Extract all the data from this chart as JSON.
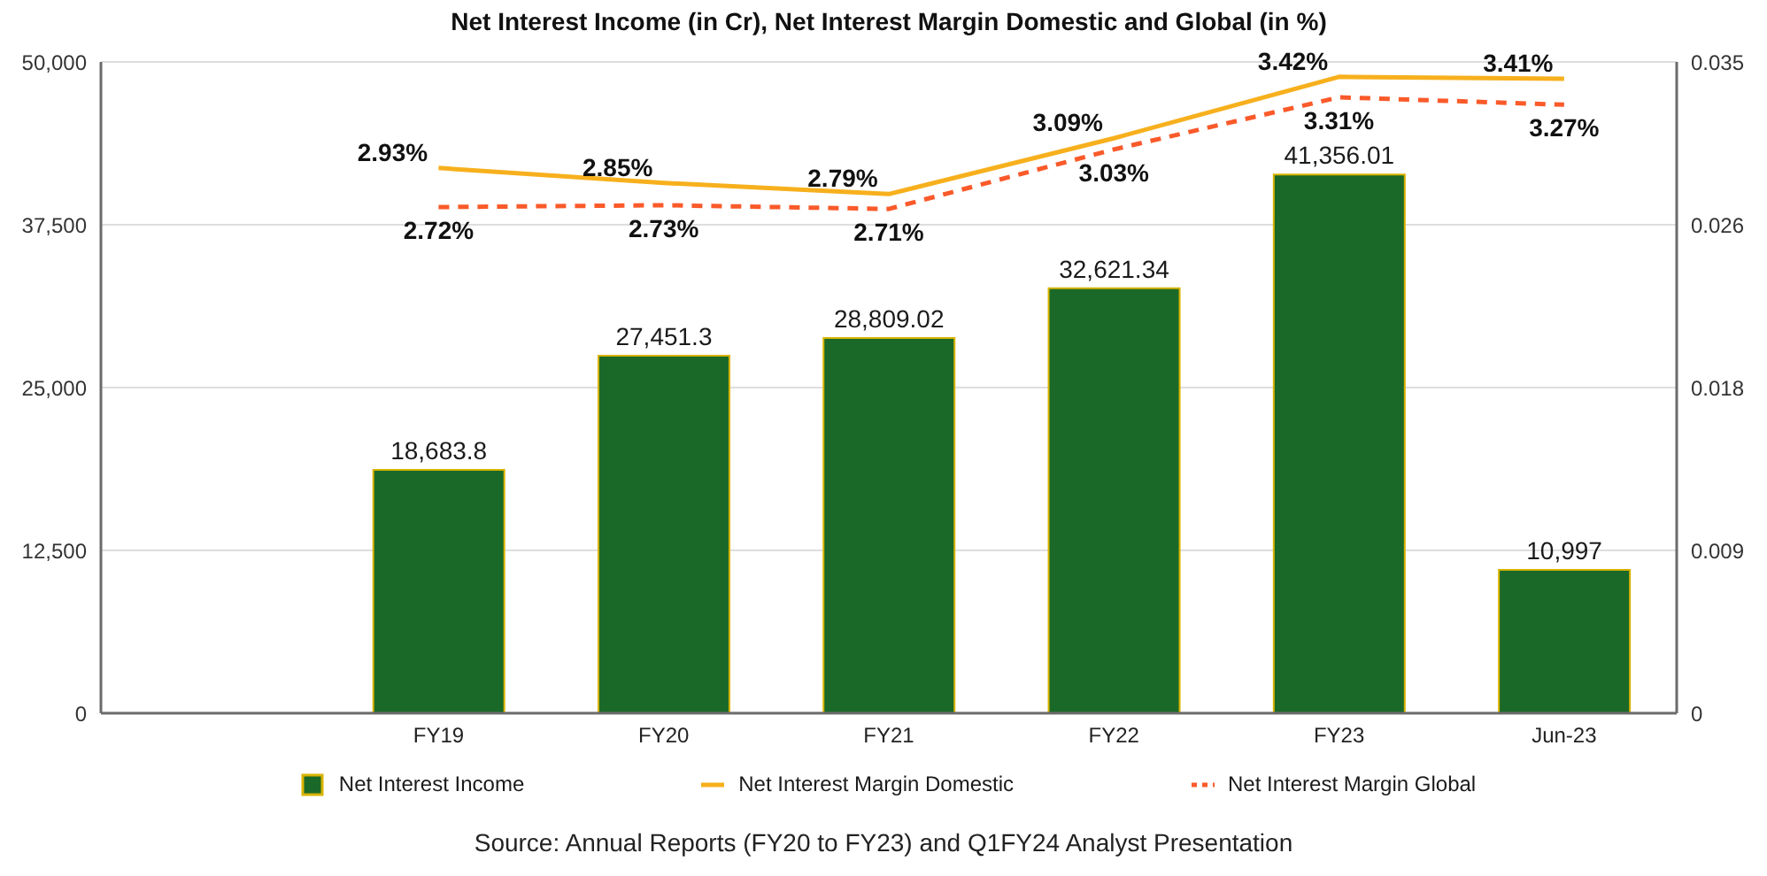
{
  "chart_data": {
    "type": "bar",
    "title": "Net Interest Income (in Cr), Net Interest Margin Domestic and Global (in %)",
    "categories": [
      null,
      "FY19",
      "FY20",
      "FY21",
      "FY22",
      "FY23",
      "Jun-23"
    ],
    "series": [
      {
        "name": "Net Interest Income",
        "color": "#1b6928",
        "values": [
          null,
          18683.8,
          27451.3,
          28809.02,
          32621.34,
          41356.01,
          10997
        ],
        "value_labels": [
          null,
          "18,683.8",
          "27,451.3",
          "28,809.02",
          "32,621.34",
          "41,356.01",
          "10,997"
        ]
      },
      {
        "name": "Net Interest Margin Domestic",
        "type": "line",
        "axis": "y2",
        "color": "#f7b01d",
        "line_style": "solid",
        "values": [
          null,
          0.0293,
          0.0285,
          0.0279,
          0.0309,
          0.0342,
          0.0341
        ],
        "value_labels": [
          null,
          "2.93%",
          "2.85%",
          "2.79%",
          "3.09%",
          "3.42%",
          "3.41%"
        ]
      },
      {
        "name": "Net Interest Margin Global",
        "type": "line",
        "axis": "y2",
        "color": "#fa5a2a",
        "line_style": "dashed",
        "values": [
          null,
          0.0272,
          0.0273,
          0.0271,
          0.0303,
          0.0331,
          0.0327
        ],
        "value_labels": [
          null,
          "2.72%",
          "2.73%",
          "2.71%",
          "3.03%",
          "3.31%",
          "3.27%"
        ]
      }
    ],
    "ylim": [
      0,
      50000
    ],
    "yticks": [
      0,
      {
        "value": 12500,
        "label": "12,500"
      },
      {
        "value": 25000,
        "label": "25,000"
      },
      {
        "value": 37500,
        "label": "37,500"
      },
      {
        "value": 50000,
        "label": "50,000"
      }
    ],
    "y2lim": [
      0,
      0.035
    ],
    "y2ticks": [
      0,
      {
        "value": 0.00875,
        "label": "0.009"
      },
      {
        "value": 0.0175,
        "label": "0.018"
      },
      {
        "value": 0.02625,
        "label": "0.026"
      },
      0.035
    ],
    "grid": "y",
    "legend": "bottom",
    "annotations": [
      "Source: Annual Reports (FY20 to FY23) and Q1FY24 Analyst Presentation"
    ]
  }
}
